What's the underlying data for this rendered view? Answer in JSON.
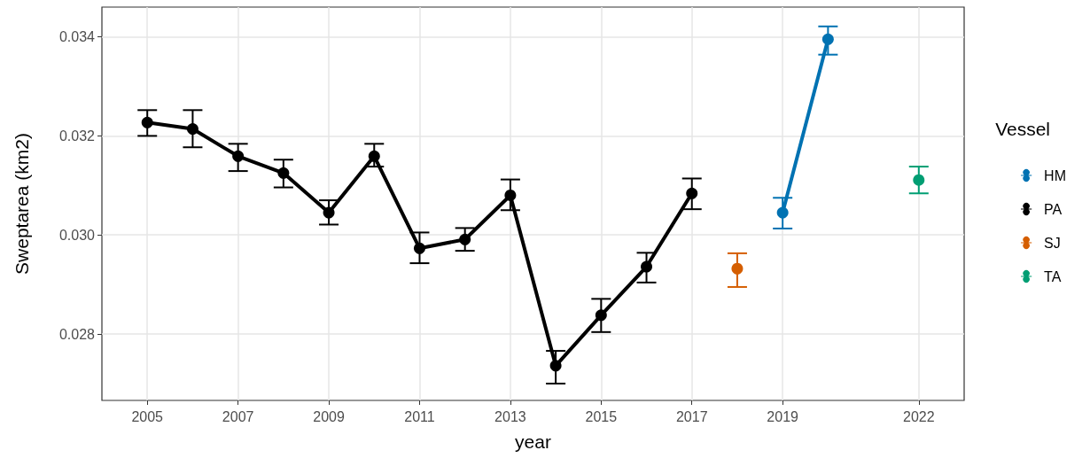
{
  "chart_data": {
    "type": "line",
    "xlabel": "year",
    "ylabel": "Sweptarea (km2)",
    "legend_title": "Vessel",
    "xlim": [
      2004,
      2023
    ],
    "xticks": [
      2005,
      2007,
      2009,
      2011,
      2013,
      2015,
      2017,
      2019,
      2022
    ],
    "ylim": [
      0.02666,
      0.0346
    ],
    "yticks": [
      0.028,
      {
        "value": 0.03,
        "label": "0.030"
      },
      0.032,
      0.034
    ],
    "grid": true,
    "legend": "right",
    "marker": "circle",
    "line_style": "solid",
    "series": [
      {
        "name": "HM",
        "color": "#0072b2",
        "x": [
          2019,
          2020
        ],
        "values": [
          0.03045,
          0.03395
        ],
        "errors": [
          [
            0.03013,
            0.03075
          ],
          [
            0.03364,
            0.03421
          ]
        ]
      },
      {
        "name": "PA",
        "color": "#000000",
        "x": [
          2005,
          2006,
          2007,
          2008,
          2009,
          2010,
          2011,
          2012,
          2013,
          2014,
          2015,
          2016,
          2017
        ],
        "values": [
          0.03227,
          0.03214,
          0.03159,
          0.03125,
          0.03045,
          0.03159,
          0.02973,
          0.02991,
          0.0308,
          0.02736,
          0.02838,
          0.02936,
          0.03084
        ],
        "errors": [
          [
            0.032,
            0.03252
          ],
          [
            0.03177,
            0.03252
          ],
          [
            0.03129,
            0.03184
          ],
          [
            0.03096,
            0.03152
          ],
          [
            0.03021,
            0.0307
          ],
          [
            0.03138,
            0.03184
          ],
          [
            0.02943,
            0.03005
          ],
          [
            0.02968,
            0.03014
          ],
          [
            0.0305,
            0.03112
          ],
          [
            0.027,
            0.02766
          ],
          [
            0.02804,
            0.02871
          ],
          [
            0.02904,
            0.02964
          ],
          [
            0.03052,
            0.03114
          ]
        ]
      },
      {
        "name": "SJ",
        "color": "#d55e00",
        "x": [
          2018
        ],
        "values": [
          0.02932
        ],
        "errors": [
          [
            0.02895,
            0.02963
          ]
        ]
      },
      {
        "name": "TA",
        "color": "#009e73",
        "x": [
          2022
        ],
        "values": [
          0.03111
        ],
        "errors": [
          [
            0.03084,
            0.03138
          ]
        ]
      }
    ]
  }
}
